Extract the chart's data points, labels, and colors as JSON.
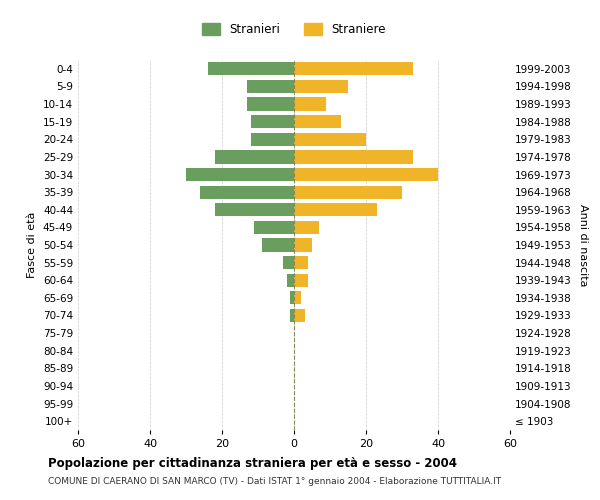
{
  "age_groups": [
    "100+",
    "95-99",
    "90-94",
    "85-89",
    "80-84",
    "75-79",
    "70-74",
    "65-69",
    "60-64",
    "55-59",
    "50-54",
    "45-49",
    "40-44",
    "35-39",
    "30-34",
    "25-29",
    "20-24",
    "15-19",
    "10-14",
    "5-9",
    "0-4"
  ],
  "birth_years": [
    "≤ 1903",
    "1904-1908",
    "1909-1913",
    "1914-1918",
    "1919-1923",
    "1924-1928",
    "1929-1933",
    "1934-1938",
    "1939-1943",
    "1944-1948",
    "1949-1953",
    "1954-1958",
    "1959-1963",
    "1964-1968",
    "1969-1973",
    "1974-1978",
    "1979-1983",
    "1984-1988",
    "1989-1993",
    "1994-1998",
    "1999-2003"
  ],
  "males": [
    0,
    0,
    0,
    0,
    0,
    0,
    1,
    1,
    2,
    3,
    9,
    11,
    22,
    26,
    30,
    22,
    12,
    12,
    13,
    13,
    24
  ],
  "females": [
    0,
    0,
    0,
    0,
    0,
    0,
    3,
    2,
    4,
    4,
    5,
    7,
    23,
    30,
    40,
    33,
    20,
    13,
    9,
    15,
    33
  ],
  "male_color": "#6a9e5e",
  "female_color": "#f0b429",
  "grid_color": "#cccccc",
  "center_line_color": "#888855",
  "xlim": 60,
  "title": "Popolazione per cittadinanza straniera per età e sesso - 2004",
  "subtitle": "COMUNE DI CAERANO DI SAN MARCO (TV) - Dati ISTAT 1° gennaio 2004 - Elaborazione TUTTITALIA.IT",
  "ylabel_left": "Fasce di età",
  "ylabel_right": "Anni di nascita",
  "legend_male": "Stranieri",
  "legend_female": "Straniere",
  "background_color": "#ffffff"
}
